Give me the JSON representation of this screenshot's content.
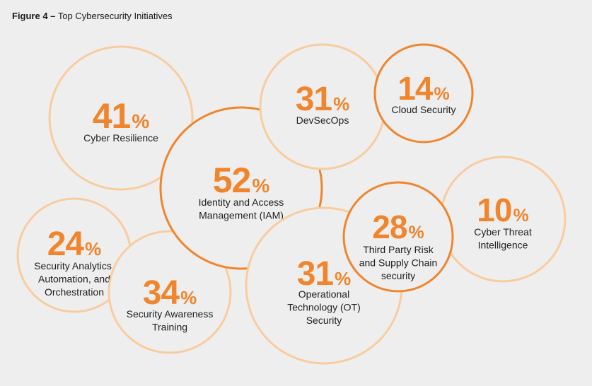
{
  "figure": {
    "label": "Figure 4 –",
    "title": "Top Cybersecurity Initiatives"
  },
  "chart_data": {
    "type": "bubble",
    "title": "Top Cybersecurity Initiatives",
    "unit": "%",
    "colors": {
      "value": "#f0852d",
      "strong_ring": "#f0852d",
      "light_ring": "#f8cc9f",
      "fill": "#efeeee",
      "label": "#1e1e1e"
    },
    "items": [
      {
        "id": "identity-access-management",
        "value": 52,
        "label": [
          "Identity and Access",
          "Management (IAM)"
        ],
        "ring": "strong"
      },
      {
        "id": "cyber-resilience",
        "value": 41,
        "label": [
          "Cyber Resilience"
        ],
        "ring": "light"
      },
      {
        "id": "devsecops",
        "value": 31,
        "label": [
          "DevSecOps"
        ],
        "ring": "light"
      },
      {
        "id": "cloud-security",
        "value": 14,
        "label": [
          "Cloud Security"
        ],
        "ring": "strong"
      },
      {
        "id": "cyber-threat-intelligence",
        "value": 10,
        "label": [
          "Cyber Threat",
          "Intelligence"
        ],
        "ring": "light"
      },
      {
        "id": "third-party-risk",
        "value": 28,
        "label": [
          "Third Party Risk",
          "and Supply Chain",
          "security"
        ],
        "ring": "strong"
      },
      {
        "id": "operational-technology",
        "value": 31,
        "label": [
          "Operational",
          "Technology (OT)",
          "Security"
        ],
        "ring": "light"
      },
      {
        "id": "security-awareness-training",
        "value": 34,
        "label": [
          "Security Awareness",
          "Training"
        ],
        "ring": "light"
      },
      {
        "id": "security-analytics",
        "value": 24,
        "label": [
          "Security Analytics,",
          "Automation, and",
          "Orchestration"
        ],
        "ring": "light"
      }
    ]
  }
}
